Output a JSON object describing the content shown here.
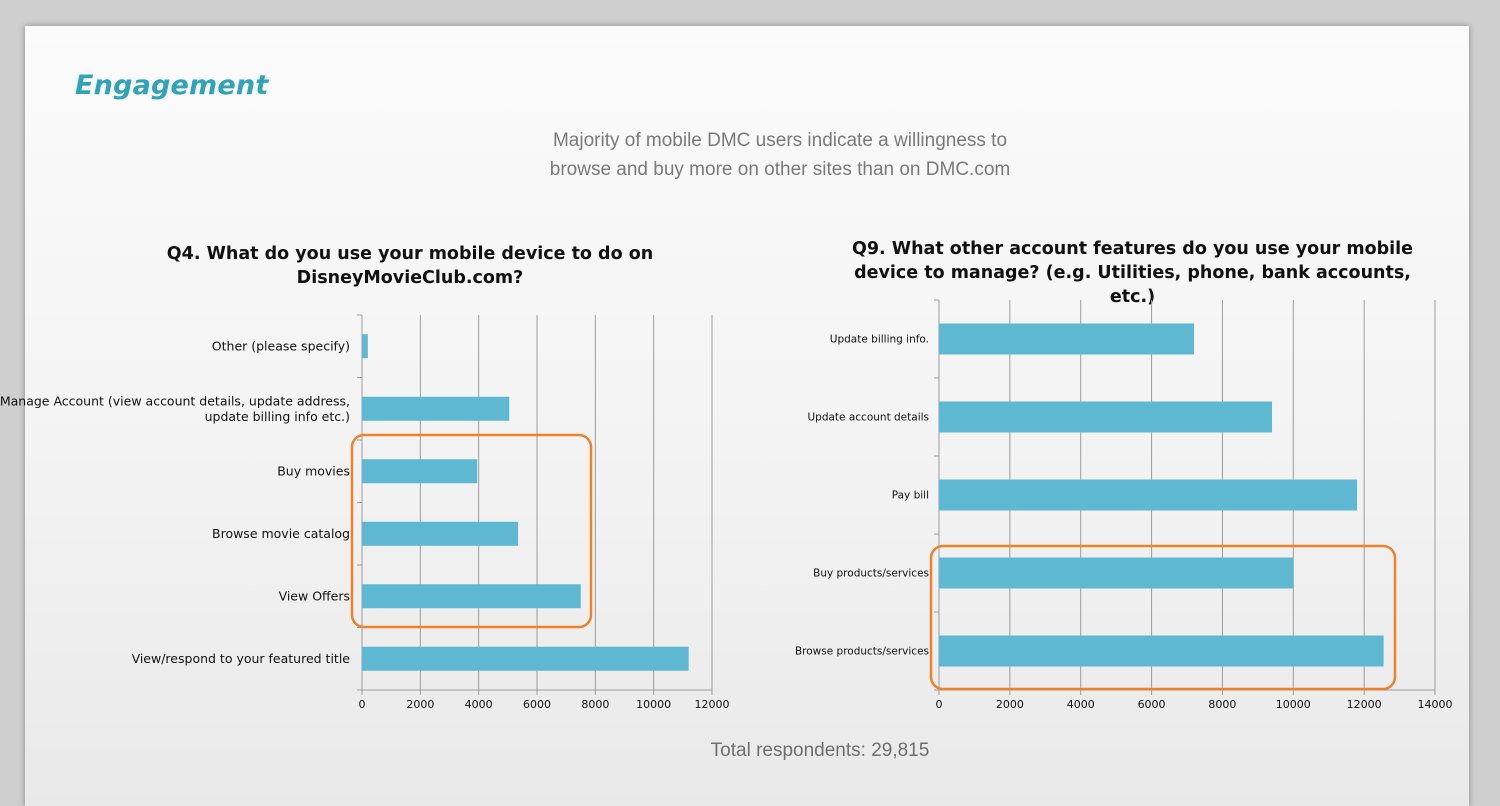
{
  "slide": {
    "title": "Engagement",
    "subtitle_line1": "Majority of mobile DMC users indicate a willingness to",
    "subtitle_line2": "browse and buy more on other sites than on DMC.com",
    "footer": "Total respondents: 29,815"
  },
  "colors": {
    "bar": "#5fb8d2",
    "highlight": "#ee8129",
    "title": "#2fa3b7",
    "gridline": "#9c9c9c"
  },
  "chart_data": [
    {
      "type": "bar",
      "orientation": "horizontal",
      "title_line1": "Q4. What do you use your mobile device to do on",
      "title_line2": "DisneyMovieClub.com?",
      "categories": [
        [
          "Other (please specify)"
        ],
        [
          "Manage Account (view account details, update address,",
          "update billing info etc.)"
        ],
        [
          "Buy movies"
        ],
        [
          "Browse movie catalog"
        ],
        [
          "View Offers"
        ],
        [
          "View/respond to your featured title"
        ]
      ],
      "values": [
        200,
        5050,
        3950,
        5350,
        7500,
        11200
      ],
      "xlim": [
        0,
        12000
      ],
      "ticks": [
        0,
        2000,
        4000,
        6000,
        8000,
        10000,
        12000
      ],
      "grid": true,
      "highlighted_categories": [
        "Buy movies",
        "Browse movie catalog",
        "View Offers"
      ]
    },
    {
      "type": "bar",
      "orientation": "horizontal",
      "title_line1": "Q9. What other account features do you use your mobile",
      "title_line2": "device to manage? (e.g. Utilities, phone, bank accounts, etc.)",
      "categories": [
        [
          "Update billing info."
        ],
        [
          "Update account details"
        ],
        [
          "Pay bill"
        ],
        [
          "Buy products/services"
        ],
        [
          "Browse products/services"
        ]
      ],
      "values": [
        7200,
        9400,
        11800,
        10000,
        12550
      ],
      "xlim": [
        0,
        14000
      ],
      "ticks": [
        0,
        2000,
        4000,
        6000,
        8000,
        10000,
        12000,
        14000
      ],
      "grid": true,
      "highlighted_categories": [
        "Buy products/services",
        "Browse products/services"
      ]
    }
  ]
}
